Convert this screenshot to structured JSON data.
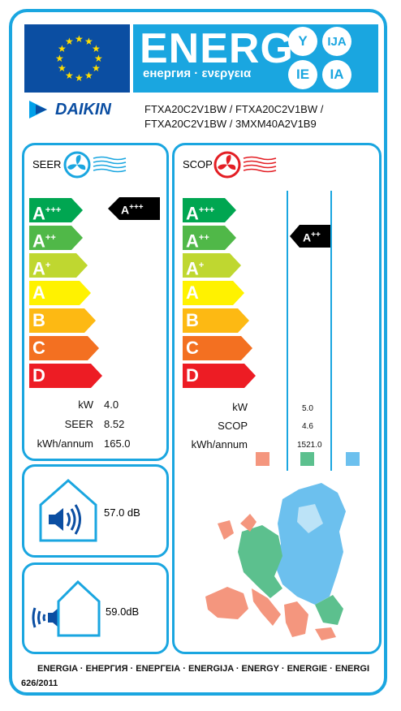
{
  "header": {
    "title": "ENERG",
    "subtitle": "енергия · ενεργεια",
    "lang_codes": [
      "Y",
      "IJA",
      "IE",
      "IA"
    ]
  },
  "brand": {
    "name": "DAIKIN"
  },
  "model": {
    "line1": "FTXA20C2V1BW / FTXA20C2V1BW /",
    "line2": "FTXA20C2V1BW / 3MXM40A2V1B9"
  },
  "cooling": {
    "label": "SEER",
    "classes": [
      {
        "main": "A",
        "sup": "+++",
        "color": "#00a651"
      },
      {
        "main": "A",
        "sup": "++",
        "color": "#50b848"
      },
      {
        "main": "A",
        "sup": "+",
        "color": "#bfd730"
      },
      {
        "main": "A",
        "sup": "",
        "color": "#fff200"
      },
      {
        "main": "B",
        "sup": "",
        "color": "#fdb913"
      },
      {
        "main": "C",
        "sup": "",
        "color": "#f37021"
      },
      {
        "main": "D",
        "sup": "",
        "color": "#ed1c24"
      }
    ],
    "rating": {
      "main": "A",
      "sup": "+++"
    },
    "rows": [
      {
        "label": "kW",
        "value": "4.0"
      },
      {
        "label": "SEER",
        "value": "8.52"
      },
      {
        "label": "kWh/annum",
        "value": "165.0"
      }
    ]
  },
  "heating": {
    "label": "SCOP",
    "rating": {
      "main": "A",
      "sup": "++"
    },
    "rows": [
      {
        "label": "kW",
        "value": "5.0"
      },
      {
        "label": "SCOP",
        "value": "4.6"
      },
      {
        "label": "kWh/annum",
        "value": "1521.0"
      }
    ],
    "zone_colors": [
      "#f4967e",
      "#5cc08e",
      "#6cc0ee"
    ]
  },
  "noise": {
    "indoor": "57.0 dB",
    "outdoor": "59.0dB"
  },
  "footer": {
    "languages": "ENERGIA · ЕНЕРГИЯ · ΕΝΕΡΓΕΙΑ · ENERGIJA · ENERGY · ENERGIE · ENERGI",
    "regulation": "626/2011"
  }
}
